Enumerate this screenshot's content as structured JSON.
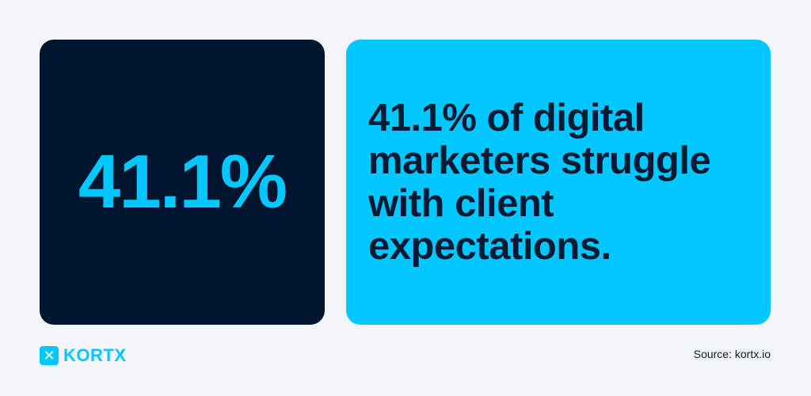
{
  "stat_card": {
    "value": "41.1%",
    "background": "#00162e",
    "accent": "#00c8ff"
  },
  "headline_card": {
    "text": "41.1% of digital marketers struggle with client expectations.",
    "background": "#00c8ff",
    "text_color": "#071a33"
  },
  "footer": {
    "logo_icon": "x-logo-icon",
    "brand": "KORTX",
    "source": "Source: kortx.io"
  }
}
